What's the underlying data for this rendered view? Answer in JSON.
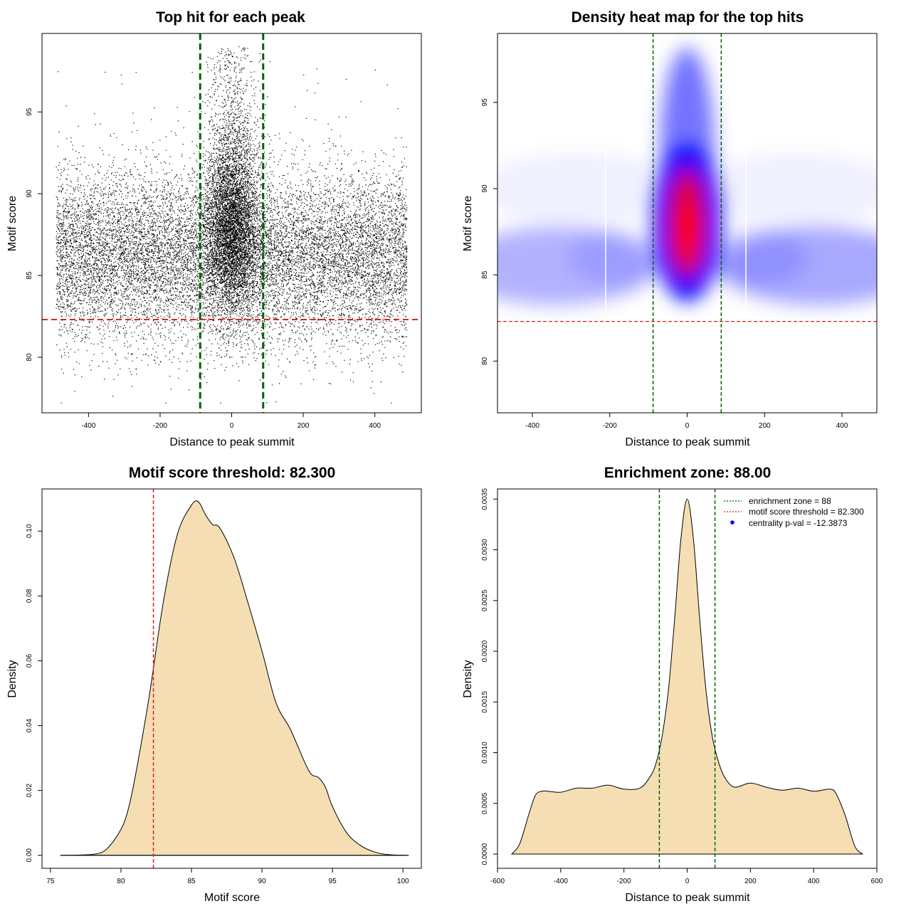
{
  "colors": {
    "green": "#006400",
    "red": "#dd2222",
    "fill": "#f5deb3",
    "blue": "#0000ff",
    "heat_red": "#ff0000"
  },
  "chart_data": [
    {
      "type": "scatter",
      "title": "Top hit for each peak",
      "xlabel": "Distance to peak summit",
      "ylabel": "Motif score",
      "xlim": [
        -530,
        530
      ],
      "ylim": [
        76.6,
        99.8
      ],
      "xticks": [
        -400,
        -200,
        0,
        200,
        400
      ],
      "yticks": [
        80,
        85,
        90,
        95
      ],
      "x_range": [
        -490,
        490
      ],
      "score_threshold": 82.3,
      "enrichment_zone": [
        -88,
        88
      ],
      "description_of_points": "thousands of top hits: uniform background across distance with scores about 80-92, plus a dense centered cluster within +/-88 bp reaching scores up to about 99"
    },
    {
      "type": "heatmap",
      "title": "Density heat map for the top hits",
      "xlabel": "Distance to peak summit",
      "ylabel": "Motif score",
      "xlim": [
        -490,
        490
      ],
      "ylim": [
        77,
        99
      ],
      "xticks": [
        -400,
        -200,
        0,
        200,
        400
      ],
      "yticks": [
        80,
        85,
        90,
        95
      ],
      "score_threshold": 82.3,
      "enrichment_zone": [
        -88,
        88
      ],
      "peak_density_center": [
        0,
        88
      ],
      "color_scale": [
        "white",
        "blue",
        "red"
      ]
    },
    {
      "type": "area",
      "title": "Motif score threshold: 82.300",
      "xlabel": "Motif score",
      "ylabel": "Density",
      "xlim": [
        74.4,
        101.3
      ],
      "ylim": [
        -0.004,
        0.113
      ],
      "xticks": [
        75,
        80,
        85,
        90,
        95,
        100
      ],
      "yticks": [
        0.0,
        0.02,
        0.04,
        0.06,
        0.08,
        0.1
      ],
      "ytick_labels": [
        "0.00",
        "0.02",
        "0.04",
        "0.06",
        "0.08",
        "0.10"
      ],
      "score_threshold": 82.3,
      "x": [
        75.7,
        78,
        79,
        80,
        80.5,
        81,
        82,
        83,
        84,
        85,
        85.5,
        86,
        86.5,
        87,
        88,
        89,
        90,
        91,
        92,
        93,
        93.5,
        94,
        94.5,
        95,
        96,
        97,
        98,
        99,
        100.4
      ],
      "y": [
        0.0,
        0.0003,
        0.002,
        0.008,
        0.014,
        0.024,
        0.049,
        0.078,
        0.099,
        0.108,
        0.109,
        0.105,
        0.102,
        0.101,
        0.092,
        0.078,
        0.063,
        0.047,
        0.039,
        0.029,
        0.025,
        0.024,
        0.021,
        0.015,
        0.007,
        0.003,
        0.001,
        0.0002,
        0.0
      ]
    },
    {
      "type": "area",
      "title": "Enrichment zone: 88.00",
      "xlabel": "Distance to peak summit",
      "ylabel": "Density",
      "xlim": [
        -600,
        600
      ],
      "ylim": [
        -0.00014,
        0.0036
      ],
      "xticks": [
        -600,
        -400,
        -200,
        0,
        200,
        400,
        600
      ],
      "yticks": [
        0,
        0.0005,
        0.001,
        0.0015,
        0.002,
        0.0025,
        0.003,
        0.0035
      ],
      "ytick_labels": [
        "0.0000",
        "0.0005",
        "0.0010",
        "0.0015",
        "0.0020",
        "0.0025",
        "0.0030",
        "0.0035"
      ],
      "enrichment_zone": [
        -88,
        88
      ],
      "x": [
        -555,
        -530,
        -500,
        -480,
        -460,
        -440,
        -400,
        -350,
        -300,
        -250,
        -200,
        -150,
        -120,
        -100,
        -80,
        -60,
        -40,
        -20,
        0,
        20,
        40,
        60,
        80,
        100,
        120,
        150,
        200,
        250,
        300,
        350,
        400,
        450,
        470,
        500,
        530,
        555
      ],
      "y": [
        0.0,
        0.0001,
        0.0004,
        0.00058,
        0.00062,
        0.00062,
        0.00061,
        0.00065,
        0.00065,
        0.00068,
        0.00064,
        0.00065,
        0.00075,
        0.00088,
        0.00115,
        0.0016,
        0.0023,
        0.0031,
        0.0035,
        0.0031,
        0.0023,
        0.0016,
        0.00115,
        0.0009,
        0.00075,
        0.00066,
        0.0007,
        0.00066,
        0.00063,
        0.00065,
        0.00062,
        0.00064,
        0.0006,
        0.00038,
        8e-05,
        0.0
      ],
      "legend": [
        {
          "label": "enrichment zone = 88",
          "kind": "dotted-line",
          "color": "#006400"
        },
        {
          "label": "motif score threshold = 82.300",
          "kind": "dotted-line",
          "color": "#dd2222"
        },
        {
          "label": "centrality p-val = -12.3873",
          "kind": "point",
          "color": "#0000ff"
        }
      ],
      "legend_position": "top-right"
    }
  ]
}
